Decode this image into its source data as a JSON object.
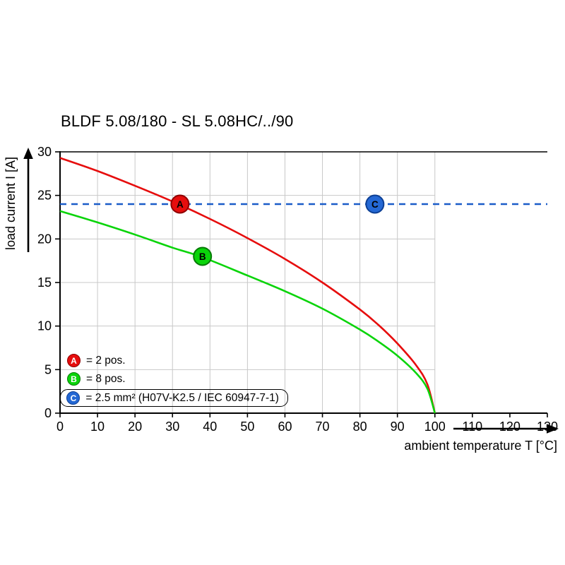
{
  "title": "BLDF 5.08/180 - SL 5.08HC/../90",
  "chart_data": {
    "type": "line",
    "title": "BLDF 5.08/180 - SL 5.08HC/../90",
    "xlabel": "ambient temperature T [°C]",
    "ylabel": "load current I [A]",
    "xlim": [
      0,
      130
    ],
    "ylim": [
      0,
      30
    ],
    "xticks": [
      0,
      10,
      20,
      30,
      40,
      50,
      60,
      70,
      80,
      90,
      100,
      110,
      120,
      130
    ],
    "yticks": [
      0,
      5,
      10,
      15,
      20,
      25,
      30
    ],
    "grid": true,
    "grid_x_extent": 100,
    "series": [
      {
        "name": "A",
        "kind": "curve",
        "color": "#e60d0d",
        "points": [
          [
            0,
            29.3
          ],
          [
            10,
            27.8
          ],
          [
            20,
            26.1
          ],
          [
            30,
            24.3
          ],
          [
            40,
            22.3
          ],
          [
            50,
            20.1
          ],
          [
            60,
            17.7
          ],
          [
            70,
            15.0
          ],
          [
            80,
            11.9
          ],
          [
            85,
            10.1
          ],
          [
            90,
            8.0
          ],
          [
            95,
            5.5
          ],
          [
            98,
            3.3
          ],
          [
            100,
            0
          ]
        ]
      },
      {
        "name": "B",
        "kind": "curve",
        "color": "#0ad40a",
        "points": [
          [
            0,
            23.2
          ],
          [
            10,
            21.9
          ],
          [
            20,
            20.5
          ],
          [
            30,
            19.0
          ],
          [
            38,
            17.9
          ],
          [
            50,
            15.8
          ],
          [
            60,
            14.0
          ],
          [
            70,
            12.0
          ],
          [
            80,
            9.6
          ],
          [
            85,
            8.2
          ],
          [
            90,
            6.6
          ],
          [
            95,
            4.6
          ],
          [
            98,
            2.8
          ],
          [
            100,
            0
          ]
        ]
      },
      {
        "name": "C",
        "kind": "hline-dashed",
        "color": "#1a5cc8",
        "y": 24
      }
    ],
    "markers": [
      {
        "key": "A",
        "x": 32,
        "y": 24,
        "fill": "#e60d0d",
        "stroke": "#8f0000"
      },
      {
        "key": "B",
        "x": 38,
        "y": 18,
        "fill": "#0ad40a",
        "stroke": "#067a06"
      },
      {
        "key": "C",
        "x": 84,
        "y": 24,
        "fill": "#2468d4",
        "stroke": "#0d3f94"
      }
    ]
  },
  "legend": {
    "items": [
      {
        "key": "A",
        "text": "= 2 pos."
      },
      {
        "key": "B",
        "text": "= 8 pos."
      },
      {
        "key": "C",
        "text": "= 2.5 mm² (H07V-K2.5 / IEC 60947-7-1)"
      }
    ]
  }
}
